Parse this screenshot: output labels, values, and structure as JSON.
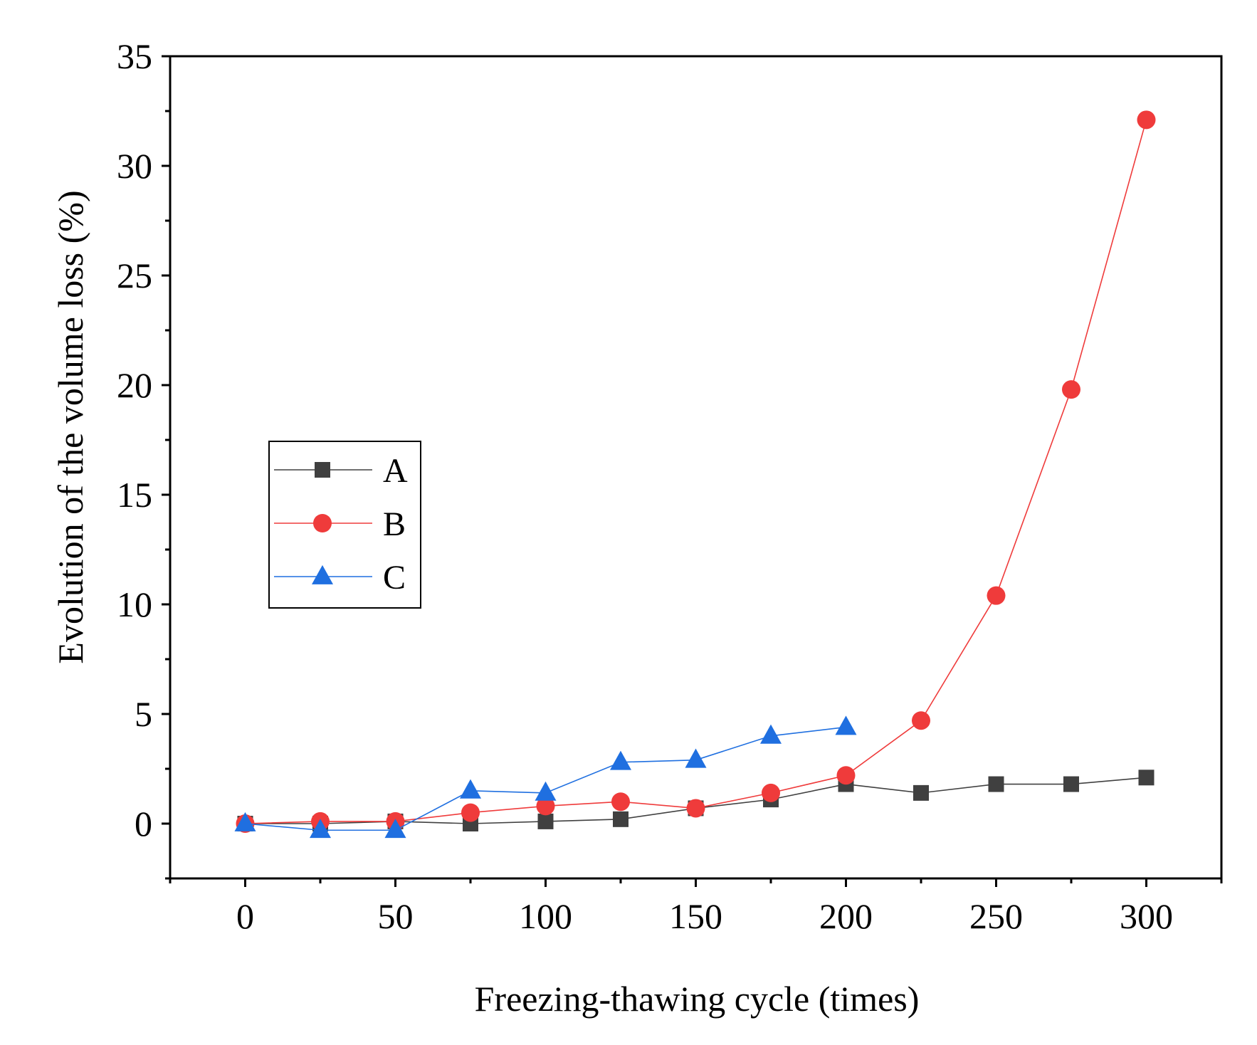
{
  "chart_data": {
    "type": "line",
    "title": "",
    "xlabel": "Freezing-thawing cycle (times)",
    "ylabel": "Evolution of the volume loss (%)",
    "xlim": [
      -25,
      325
    ],
    "ylim": [
      -2.5,
      35
    ],
    "xticks": [
      0,
      50,
      100,
      150,
      200,
      250,
      300
    ],
    "yticks": [
      0,
      5,
      10,
      15,
      20,
      25,
      30,
      35
    ],
    "x_minor_step": 25,
    "y_minor_step": 2.5,
    "grid": false,
    "legend_position": "middle-left",
    "series": [
      {
        "name": "A",
        "color": "#404040",
        "marker": "square",
        "x": [
          0,
          25,
          50,
          75,
          100,
          125,
          150,
          175,
          200,
          225,
          250,
          275,
          300
        ],
        "y": [
          0.0,
          0.0,
          0.1,
          0.0,
          0.1,
          0.2,
          0.7,
          1.1,
          1.8,
          1.4,
          1.8,
          1.8,
          2.1
        ]
      },
      {
        "name": "B",
        "color": "#ef3b3b",
        "marker": "circle",
        "x": [
          0,
          25,
          50,
          75,
          100,
          125,
          150,
          175,
          200,
          225,
          250,
          275,
          300
        ],
        "y": [
          0.0,
          0.1,
          0.1,
          0.5,
          0.8,
          1.0,
          0.7,
          1.4,
          2.2,
          4.7,
          10.4,
          19.8,
          32.1
        ]
      },
      {
        "name": "C",
        "color": "#1f6fe0",
        "marker": "triangle",
        "x": [
          0,
          25,
          50,
          75,
          100,
          125,
          150,
          175,
          200
        ],
        "y": [
          0.0,
          -0.3,
          -0.3,
          1.5,
          1.4,
          2.8,
          2.9,
          4.0,
          4.4
        ]
      }
    ]
  }
}
